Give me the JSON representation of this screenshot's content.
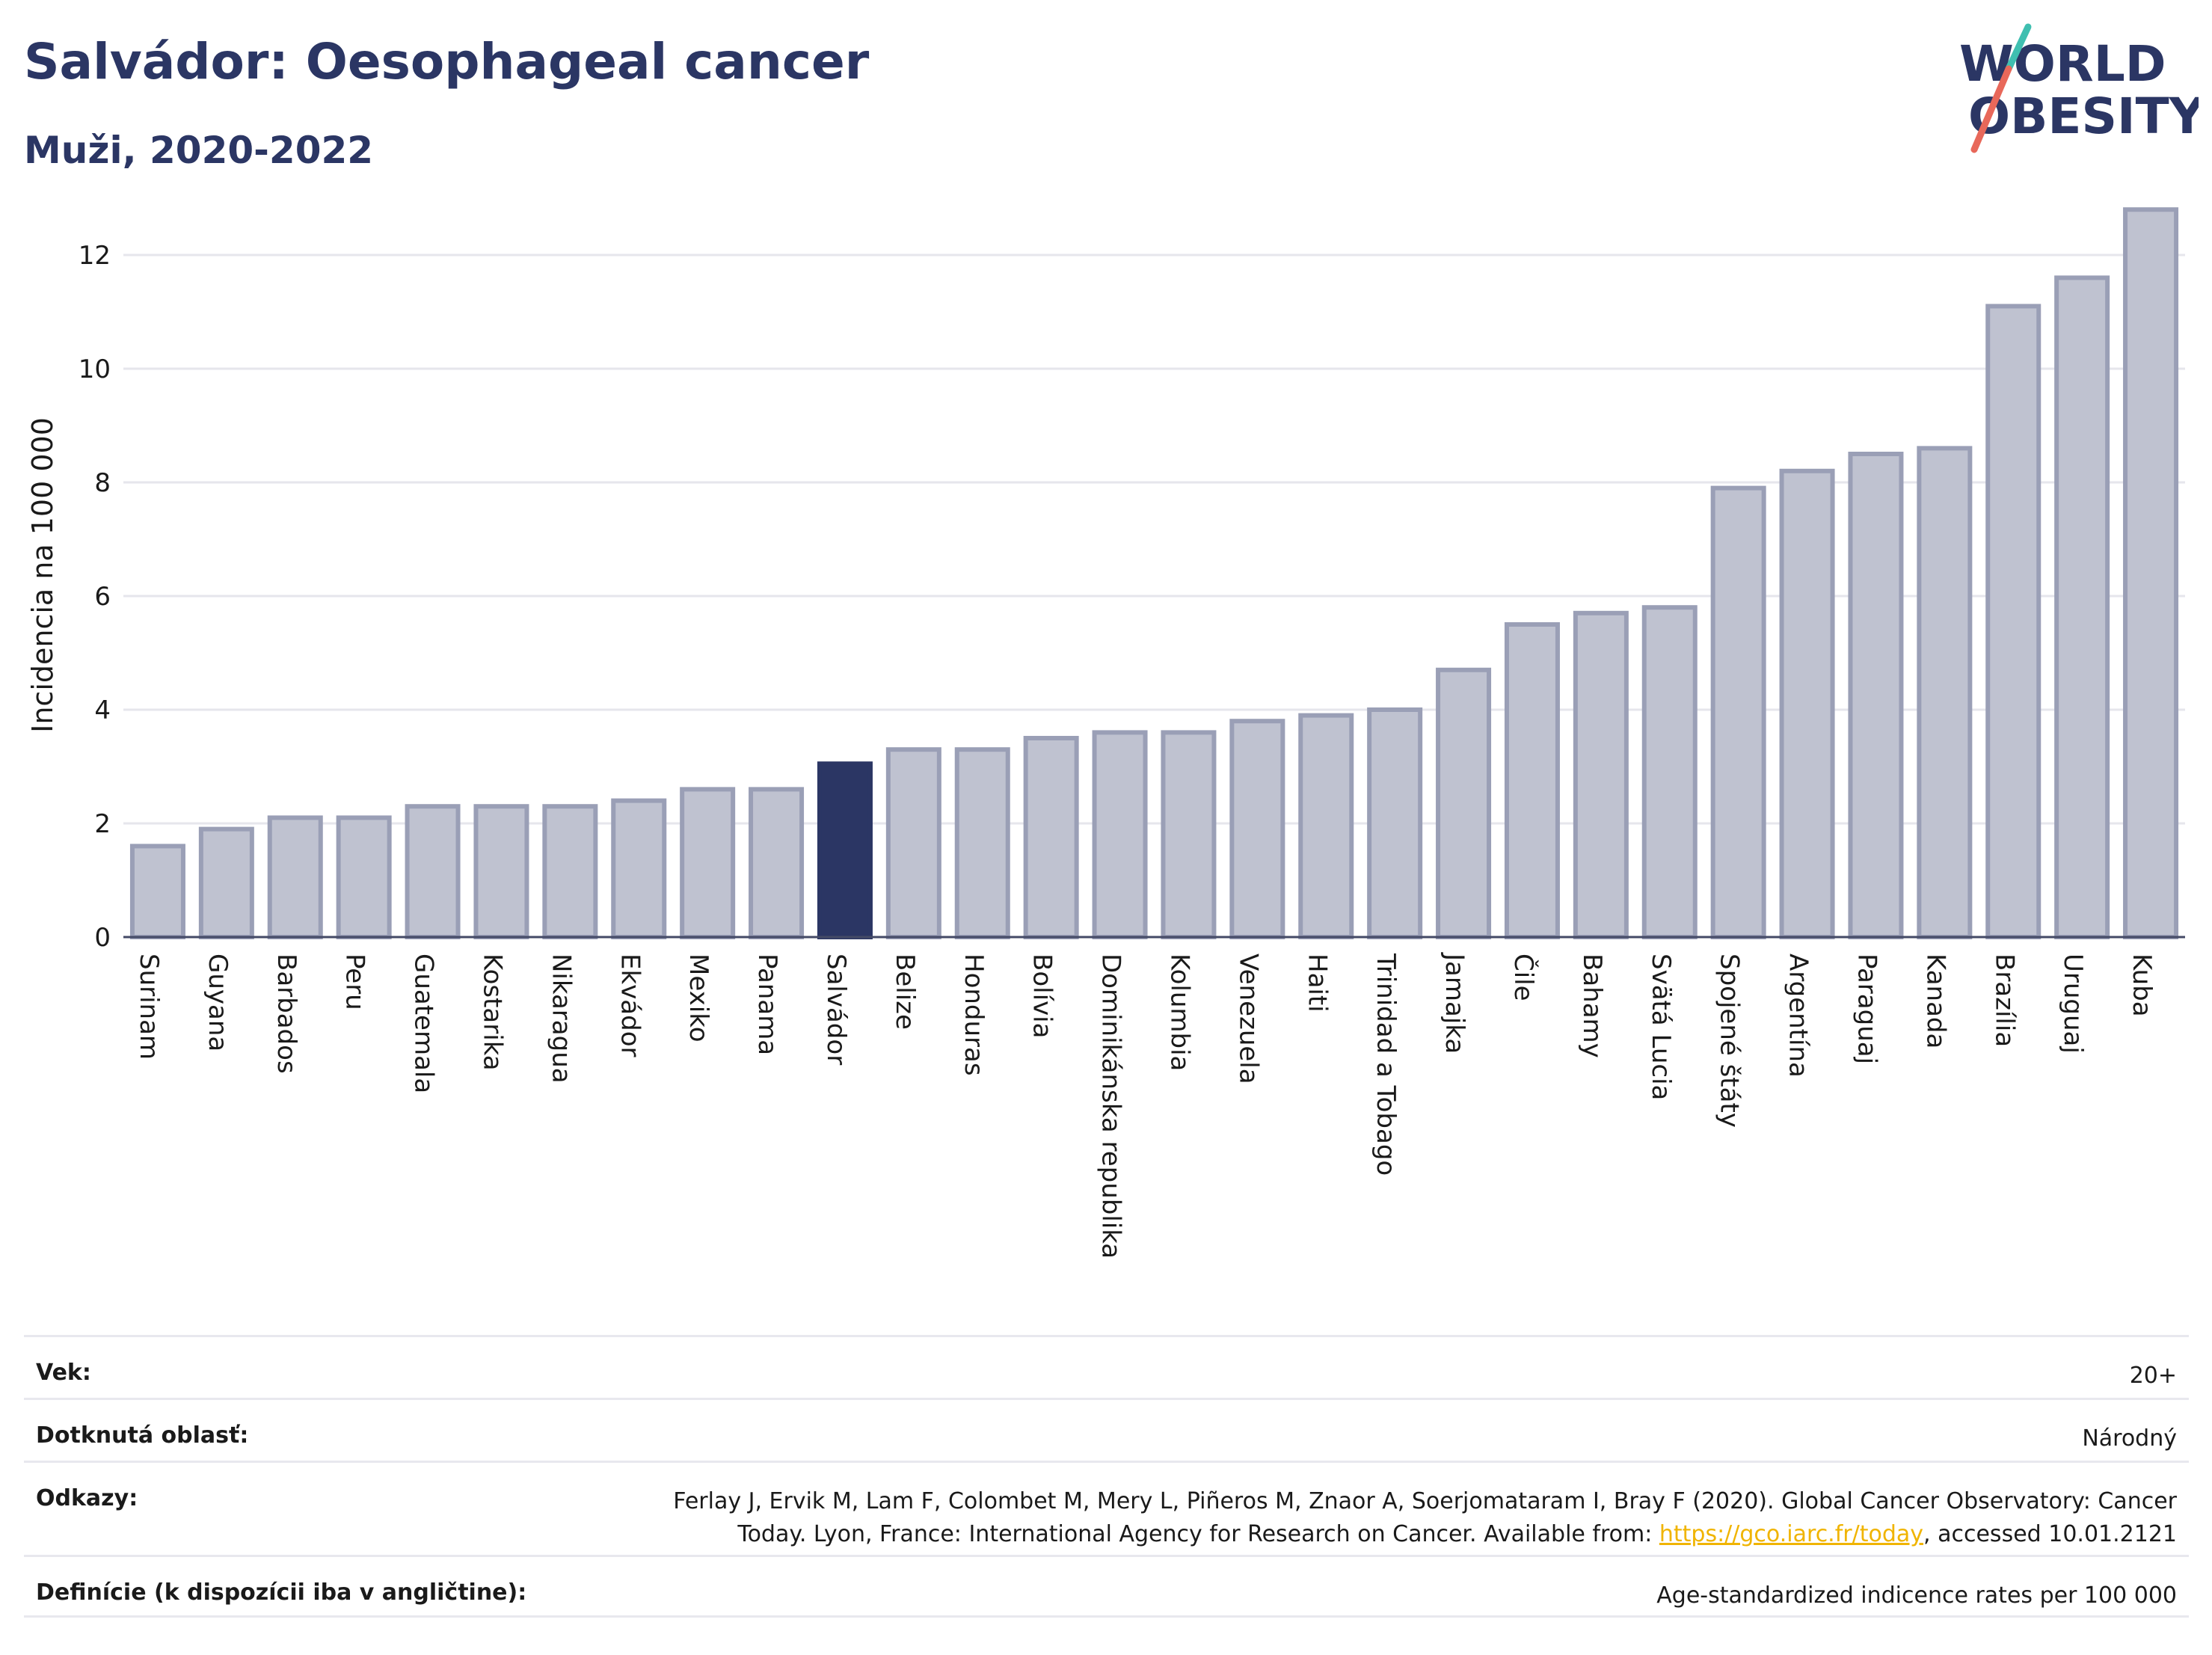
{
  "header": {
    "title": "Salvádor: Oesophageal cancer",
    "subtitle": "Muži, 2020-2022"
  },
  "logo": {
    "line1": "WORLD",
    "line2": "OBESITY"
  },
  "chart_data": {
    "type": "bar",
    "title": "Salvádor: Oesophageal cancer",
    "subtitle": "Muži, 2020-2022",
    "ylabel": "Incidencia na 100 000",
    "xlabel": "",
    "ylim": [
      0,
      13
    ],
    "yticks": [
      0,
      2,
      4,
      6,
      8,
      10,
      12
    ],
    "grid": true,
    "highlight": "Salvádor",
    "colors": {
      "bar": "#bfc2d0",
      "bar_border": "#9a9fb6",
      "highlight": "#2b3664"
    },
    "categories": [
      "Surinam",
      "Guyana",
      "Barbados",
      "Peru",
      "Guatemala",
      "Kostarika",
      "Nikaragua",
      "Ekvádor",
      "Mexiko",
      "Panama",
      "Salvádor",
      "Belize",
      "Honduras",
      "Bolívia",
      "Dominikánska republika",
      "Kolumbia",
      "Venezuela",
      "Haiti",
      "Trinidad a Tobago",
      "Jamajka",
      "Čile",
      "Bahamy",
      "Svätá Lucia",
      "Spojené štáty",
      "Argentína",
      "Paraguaj",
      "Kanada",
      "Brazília",
      "Uruguaj",
      "Kuba"
    ],
    "values": [
      1.6,
      1.9,
      2.1,
      2.1,
      2.3,
      2.3,
      2.3,
      2.4,
      2.6,
      2.6,
      3.05,
      3.3,
      3.3,
      3.5,
      3.6,
      3.6,
      3.8,
      3.9,
      4.0,
      4.7,
      5.5,
      5.7,
      5.8,
      7.9,
      8.2,
      8.5,
      8.6,
      11.1,
      11.6,
      12.8
    ]
  },
  "meta": {
    "rows": [
      {
        "key": "Vek:",
        "value": "20+"
      },
      {
        "key": "Dotknutá oblasť:",
        "value": "Národný"
      },
      {
        "key": "Odkazy:",
        "value_line1": "Ferlay J, Ervik M, Lam F, Colombet M, Mery L, Piñeros M, Znaor A, Soerjomataram I, Bray F (2020). Global Cancer Observatory: Cancer",
        "value_line2_pre": "Today. Lyon, France: International Agency for Research on Cancer. Available from: ",
        "link": "https://gco.iarc.fr/today",
        "value_line2_post": ", accessed 10.01.2121"
      },
      {
        "key": "Definície (k dispozícii iba v angličtine):",
        "value": "Age-standardized indicence rates per 100 000"
      }
    ]
  }
}
